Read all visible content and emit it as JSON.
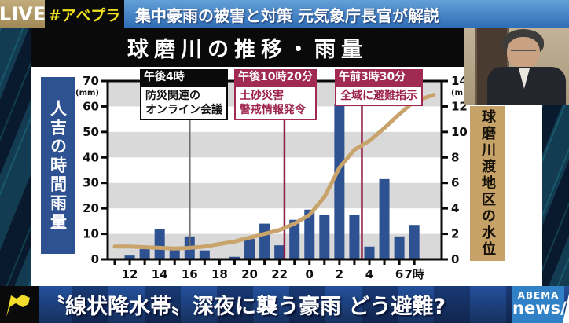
{
  "topbar": {
    "live": "LIVE",
    "hashtag": "#アベプラ",
    "headline": "集中豪雨の被害と対策 元気象庁長官が解説"
  },
  "chart": {
    "title": "球磨川の推移・雨量",
    "left_axis_title": "人吉の時間雨量",
    "right_axis_title": "球磨川渡地区の水位",
    "annotations": [
      {
        "time": "午後4時",
        "line1": "防災関連の",
        "line2": "オンライン会議"
      },
      {
        "time": "午後10時20分",
        "line1": "土砂災害",
        "line2": "警戒情報発令"
      },
      {
        "time": "午前3時30分",
        "line1": "全域に避難指示",
        "line2": ""
      }
    ]
  },
  "chart_data": {
    "type": "bar",
    "title": "球磨川の推移・雨量",
    "x_hours": [
      "11",
      "12",
      "13",
      "14",
      "15",
      "16",
      "17",
      "18",
      "19",
      "20",
      "21",
      "22",
      "23",
      "0",
      "1",
      "2",
      "3",
      "4",
      "5",
      "6",
      "7"
    ],
    "x_tick_labels": [
      "12",
      "14",
      "16",
      "18",
      "20",
      "22",
      "0",
      "2",
      "4",
      "6",
      "7時"
    ],
    "x_tick_offsets": [
      1,
      3,
      5,
      7,
      9,
      11,
      13,
      15,
      17,
      19,
      20
    ],
    "series": [
      {
        "name": "人吉の時間雨量",
        "type": "bar",
        "unit": "mm",
        "axis": "left",
        "values": [
          0,
          1.5,
          4,
          12,
          4.5,
          9,
          3.5,
          0,
          1,
          8,
          14,
          5.5,
          15.5,
          19.5,
          17.5,
          61,
          17.5,
          5,
          31.5,
          9,
          13.5
        ]
      },
      {
        "name": "球磨川渡地区の水位",
        "type": "line",
        "unit": "m",
        "axis": "right",
        "x_offsets": [
          0,
          1,
          2,
          3,
          4,
          5,
          6,
          7,
          8,
          9,
          10,
          11,
          12,
          13,
          14,
          15,
          16,
          17,
          18,
          19,
          20,
          21.3
        ],
        "values": [
          1.0,
          1.0,
          0.95,
          0.9,
          0.85,
          0.9,
          1.0,
          1.2,
          1.4,
          1.7,
          2.0,
          2.3,
          2.8,
          3.5,
          4.9,
          7.2,
          8.6,
          9.3,
          10.3,
          11.4,
          12.4,
          12.9
        ]
      }
    ],
    "left_axis": {
      "unit": "(mm)",
      "ticks": [
        70,
        60,
        50,
        40,
        30,
        20,
        10,
        0
      ],
      "max": 70
    },
    "right_axis": {
      "unit": "(m)",
      "ticks": [
        14,
        12,
        10,
        8,
        6,
        4,
        2,
        0
      ],
      "max": 14
    },
    "events": [
      {
        "time": "午後4時",
        "label": "防災関連のオンライン会議",
        "style": "black",
        "x_offset": 5
      },
      {
        "time": "午後10時20分",
        "label": "土砂災害警戒情報発令",
        "style": "maroon",
        "x_offset": 11.33
      },
      {
        "time": "午前3時30分",
        "label": "全域に避難指示",
        "style": "maroon",
        "x_offset": 16.5
      }
    ],
    "grid": "horizontal-stripes",
    "legend": "none"
  },
  "colors": {
    "bar": "#2d5191",
    "water_line": "#c8a36b",
    "stripe": "#d9d9d9",
    "maroon_header": "#a02a52",
    "maroon_line": "#8e1f45",
    "gray_line": "#6f6f6f",
    "frame": "#0a0a0a",
    "left_axis_box": "#2d5191",
    "right_axis_box": "#c6a268"
  },
  "bottombar": {
    "headline": "〝線状降水帯〟深夜に襲う豪雨 どう避難?",
    "logo_line1": "ABEMA",
    "logo_line2": "news/"
  }
}
